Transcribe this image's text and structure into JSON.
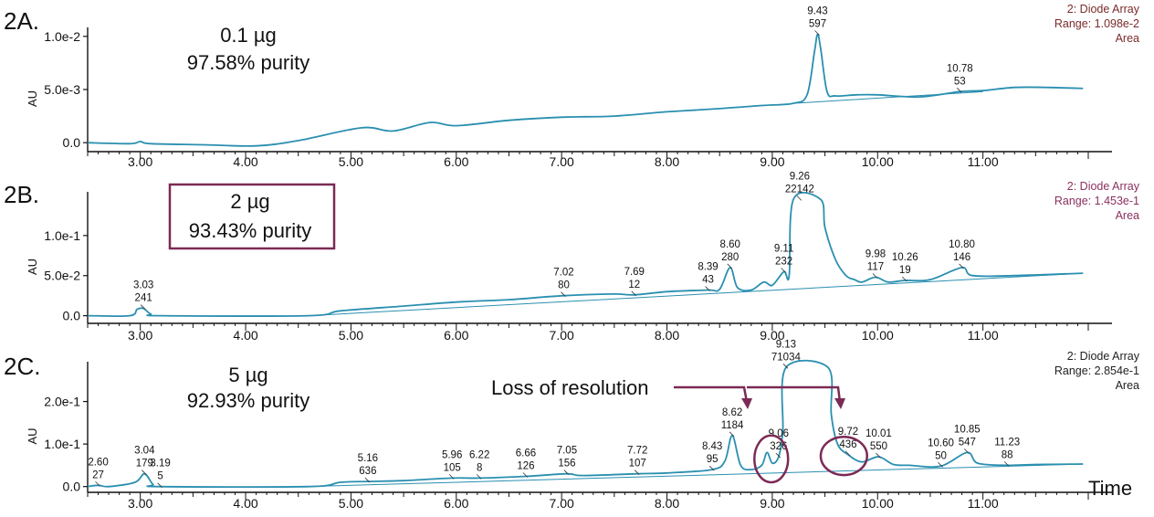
{
  "colors": {
    "trace": "#2a8fb0",
    "header_a": "#7a2a2a",
    "header_b": "#8a3060",
    "header_c": "#222222",
    "accent": "#7b2a55"
  },
  "time_label": "Time",
  "chart_data": [
    {
      "type": "line",
      "panel_label": "2A.",
      "info_lines": [
        "0.1 µg",
        "97.58% purity"
      ],
      "boxed": false,
      "detector_lines": [
        "2: Diode Array",
        "Range: 1.098e-2",
        "Area"
      ],
      "ylabel": "AU",
      "xlim": [
        2.5,
        12.0
      ],
      "ylim": [
        -0.0005,
        0.0105
      ],
      "yticks": [
        {
          "v": 0.0,
          "label": "0.0"
        },
        {
          "v": 0.005,
          "label": "5.0e-3"
        },
        {
          "v": 0.01,
          "label": "1.0e-2"
        }
      ],
      "xticks": [
        "3.00",
        "4.00",
        "5.00",
        "6.00",
        "7.00",
        "8.00",
        "9.00",
        "10.00",
        "11.00"
      ],
      "trace": [
        [
          2.5,
          0.0
        ],
        [
          2.9,
          -0.0001
        ],
        [
          3.0,
          0.0001
        ],
        [
          3.1,
          -0.0001
        ],
        [
          3.6,
          -0.0002
        ],
        [
          4.1,
          -0.0003
        ],
        [
          4.5,
          0.0002
        ],
        [
          5.1,
          0.0014
        ],
        [
          5.4,
          0.0011
        ],
        [
          5.75,
          0.0019
        ],
        [
          6.0,
          0.0016
        ],
        [
          6.5,
          0.0021
        ],
        [
          7.0,
          0.0024
        ],
        [
          7.5,
          0.0025
        ],
        [
          8.0,
          0.0029
        ],
        [
          8.5,
          0.0032
        ],
        [
          8.9,
          0.0035
        ],
        [
          9.2,
          0.0037
        ],
        [
          9.33,
          0.0045
        ],
        [
          9.4,
          0.0085
        ],
        [
          9.43,
          0.0102
        ],
        [
          9.46,
          0.0088
        ],
        [
          9.52,
          0.0048
        ],
        [
          9.6,
          0.0044
        ],
        [
          9.8,
          0.0045
        ],
        [
          10.0,
          0.0045
        ],
        [
          10.4,
          0.0043
        ],
        [
          10.78,
          0.0048
        ],
        [
          11.0,
          0.0049
        ],
        [
          11.3,
          0.0052
        ],
        [
          11.6,
          0.0052
        ],
        [
          11.95,
          0.0051
        ]
      ],
      "baseline": [
        [
          9.2,
          0.0037
        ],
        [
          11.0,
          0.0048
        ]
      ],
      "peaks": [
        {
          "label_rt": "9.43",
          "label_area": "597",
          "x": 9.43,
          "y": 0.0102
        },
        {
          "label_rt": "10.78",
          "label_area": "53",
          "x": 10.78,
          "y": 0.0048
        }
      ]
    },
    {
      "type": "line",
      "panel_label": "2B.",
      "info_lines": [
        "2 µg",
        "93.43% purity"
      ],
      "boxed": true,
      "detector_lines": [
        "2: Diode Array",
        "Range: 1.453e-1",
        "Area"
      ],
      "ylabel": "AU",
      "xlim": [
        2.5,
        12.0
      ],
      "ylim": [
        -0.005,
        0.15
      ],
      "yticks": [
        {
          "v": 0.0,
          "label": "0.0"
        },
        {
          "v": 0.05,
          "label": "5.0e-2"
        },
        {
          "v": 0.1,
          "label": "1.0e-1"
        }
      ],
      "xticks": [
        "3.00",
        "4.00",
        "5.00",
        "6.00",
        "7.00",
        "8.00",
        "9.00",
        "10.00",
        "11.00"
      ],
      "trace": [
        [
          2.5,
          0.0
        ],
        [
          2.9,
          0.0
        ],
        [
          2.97,
          0.008
        ],
        [
          3.03,
          0.009
        ],
        [
          3.1,
          0.002
        ],
        [
          3.2,
          0.0
        ],
        [
          4.6,
          0.0
        ],
        [
          4.9,
          0.006
        ],
        [
          5.5,
          0.012
        ],
        [
          6.0,
          0.017
        ],
        [
          6.5,
          0.02
        ],
        [
          7.02,
          0.025
        ],
        [
          7.5,
          0.027
        ],
        [
          7.69,
          0.026
        ],
        [
          8.0,
          0.03
        ],
        [
          8.39,
          0.032
        ],
        [
          8.5,
          0.033
        ],
        [
          8.6,
          0.06
        ],
        [
          8.67,
          0.035
        ],
        [
          8.8,
          0.032
        ],
        [
          8.92,
          0.042
        ],
        [
          9.0,
          0.038
        ],
        [
          9.11,
          0.055
        ],
        [
          9.16,
          0.05
        ],
        [
          9.2,
          0.145
        ],
        [
          9.46,
          0.145
        ],
        [
          9.5,
          0.11
        ],
        [
          9.6,
          0.07
        ],
        [
          9.7,
          0.05
        ],
        [
          9.78,
          0.045
        ],
        [
          9.85,
          0.042
        ],
        [
          9.98,
          0.048
        ],
        [
          10.1,
          0.042
        ],
        [
          10.26,
          0.044
        ],
        [
          10.5,
          0.045
        ],
        [
          10.8,
          0.06
        ],
        [
          10.9,
          0.05
        ],
        [
          11.3,
          0.05
        ],
        [
          11.95,
          0.053
        ]
      ],
      "baseline": [
        [
          4.6,
          0.0
        ],
        [
          11.95,
          0.053
        ]
      ],
      "peaks": [
        {
          "label_rt": "3.03",
          "label_area": "241",
          "x": 3.03,
          "y": 0.009
        },
        {
          "label_rt": "7.02",
          "label_area": "80",
          "x": 7.02,
          "y": 0.025
        },
        {
          "label_rt": "7.69",
          "label_area": "12",
          "x": 7.69,
          "y": 0.026
        },
        {
          "label_rt": "8.39",
          "label_area": "43",
          "x": 8.39,
          "y": 0.032
        },
        {
          "label_rt": "8.60",
          "label_area": "280",
          "x": 8.6,
          "y": 0.06
        },
        {
          "label_rt": "9.11",
          "label_area": "232",
          "x": 9.11,
          "y": 0.055
        },
        {
          "label_rt": "9.26",
          "label_area": "22142",
          "x": 9.26,
          "y": 0.145
        },
        {
          "label_rt": "9.98",
          "label_area": "117",
          "x": 9.98,
          "y": 0.048
        },
        {
          "label_rt": "10.26",
          "label_area": "19",
          "x": 10.26,
          "y": 0.044
        },
        {
          "label_rt": "10.80",
          "label_area": "146",
          "x": 10.8,
          "y": 0.06
        }
      ]
    },
    {
      "type": "line",
      "panel_label": "2C.",
      "info_lines": [
        "5 µg",
        "92.93% purity"
      ],
      "boxed": false,
      "detector_lines": [
        "2: Diode Array",
        "Range: 2.854e-1",
        "Area"
      ],
      "ylabel": "AU",
      "xlim": [
        2.5,
        12.0
      ],
      "ylim": [
        -0.005,
        0.285
      ],
      "yticks": [
        {
          "v": 0.0,
          "label": "0.0"
        },
        {
          "v": 0.1,
          "label": "1.0e-1"
        },
        {
          "v": 0.2,
          "label": "2.0e-1"
        }
      ],
      "xticks": [
        "3.00",
        "4.00",
        "5.00",
        "6.00",
        "7.00",
        "8.00",
        "9.00",
        "10.00",
        "11.00"
      ],
      "trace": [
        [
          2.5,
          0.0
        ],
        [
          2.6,
          0.003
        ],
        [
          2.7,
          0.0
        ],
        [
          2.95,
          0.01
        ],
        [
          3.04,
          0.03
        ],
        [
          3.12,
          0.005
        ],
        [
          3.19,
          0.0
        ],
        [
          4.6,
          0.0
        ],
        [
          4.9,
          0.01
        ],
        [
          5.16,
          0.012
        ],
        [
          5.5,
          0.014
        ],
        [
          5.96,
          0.02
        ],
        [
          6.22,
          0.02
        ],
        [
          6.66,
          0.024
        ],
        [
          7.05,
          0.03
        ],
        [
          7.2,
          0.026
        ],
        [
          7.72,
          0.03
        ],
        [
          8.0,
          0.032
        ],
        [
          8.43,
          0.04
        ],
        [
          8.55,
          0.06
        ],
        [
          8.62,
          0.12
        ],
        [
          8.7,
          0.05
        ],
        [
          8.8,
          0.04
        ],
        [
          8.9,
          0.05
        ],
        [
          8.95,
          0.08
        ],
        [
          9.0,
          0.055
        ],
        [
          9.06,
          0.07
        ],
        [
          9.1,
          0.13
        ],
        [
          9.13,
          0.28
        ],
        [
          9.53,
          0.28
        ],
        [
          9.56,
          0.17
        ],
        [
          9.62,
          0.1
        ],
        [
          9.72,
          0.075
        ],
        [
          9.85,
          0.058
        ],
        [
          10.01,
          0.07
        ],
        [
          10.15,
          0.052
        ],
        [
          10.3,
          0.05
        ],
        [
          10.6,
          0.048
        ],
        [
          10.85,
          0.08
        ],
        [
          10.95,
          0.055
        ],
        [
          11.23,
          0.05
        ],
        [
          11.5,
          0.052
        ],
        [
          11.95,
          0.053
        ]
      ],
      "baseline": [
        [
          4.6,
          0.0
        ],
        [
          11.95,
          0.053
        ]
      ],
      "peaks": [
        {
          "label_rt": "2.60",
          "label_area": "27",
          "x": 2.6,
          "y": 0.003
        },
        {
          "label_rt": "3.04",
          "label_area": "179",
          "x": 3.04,
          "y": 0.03
        },
        {
          "label_rt": "3.19",
          "label_area": "5",
          "x": 3.19,
          "y": 0.0
        },
        {
          "label_rt": "5.16",
          "label_area": "636",
          "x": 5.16,
          "y": 0.012
        },
        {
          "label_rt": "5.96",
          "label_area": "105",
          "x": 5.96,
          "y": 0.02
        },
        {
          "label_rt": "6.22",
          "label_area": "8",
          "x": 6.22,
          "y": 0.02
        },
        {
          "label_rt": "6.66",
          "label_area": "126",
          "x": 6.66,
          "y": 0.024
        },
        {
          "label_rt": "7.05",
          "label_area": "156",
          "x": 7.05,
          "y": 0.03
        },
        {
          "label_rt": "7.72",
          "label_area": "107",
          "x": 7.72,
          "y": 0.03
        },
        {
          "label_rt": "8.43",
          "label_area": "95",
          "x": 8.43,
          "y": 0.04
        },
        {
          "label_rt": "8.62",
          "label_area": "1184",
          "x": 8.62,
          "y": 0.12
        },
        {
          "label_rt": "9.06",
          "label_area": "326",
          "x": 9.06,
          "y": 0.07
        },
        {
          "label_rt": "9.13",
          "label_area": "71034",
          "x": 9.13,
          "y": 0.28
        },
        {
          "label_rt": "9.72",
          "label_area": "436",
          "x": 9.72,
          "y": 0.075
        },
        {
          "label_rt": "10.01",
          "label_area": "550",
          "x": 10.01,
          "y": 0.07
        },
        {
          "label_rt": "10.60",
          "label_area": "50",
          "x": 10.6,
          "y": 0.048
        },
        {
          "label_rt": "10.85",
          "label_area": "547",
          "x": 10.85,
          "y": 0.08
        },
        {
          "label_rt": "11.23",
          "label_area": "88",
          "x": 11.23,
          "y": 0.05
        }
      ],
      "annotation": {
        "text": "Loss of resolution",
        "circles": [
          {
            "cx": 8.99,
            "cy": 0.065,
            "rx": 0.16,
            "ry": 0.055
          },
          {
            "cx": 9.68,
            "cy": 0.072,
            "rx": 0.22,
            "ry": 0.045
          }
        ]
      }
    }
  ]
}
